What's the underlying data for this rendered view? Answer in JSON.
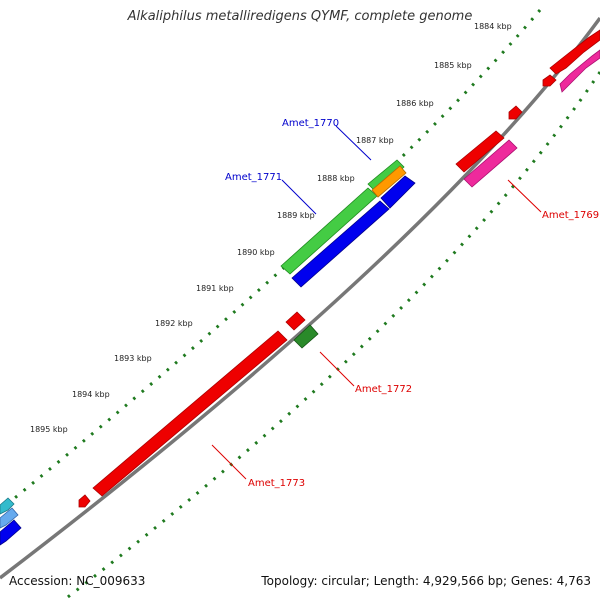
{
  "title": "Alkaliphilus metalliredigens QYMF, complete genome",
  "footer": {
    "accession": "Accession: NC_009633",
    "summary": "Topology: circular; Length: 4,929,566 bp; Genes: 4,763"
  },
  "ticks": [
    "1884 kbp",
    "1885 kbp",
    "1886 kbp",
    "1887 kbp",
    "1888 kbp",
    "1889 kbp",
    "1890 kbp",
    "1891 kbp",
    "1892 kbp",
    "1893 kbp",
    "1894 kbp",
    "1895 kbp"
  ],
  "genes": [
    {
      "name": "Amet_1769",
      "color": "#dd0000"
    },
    {
      "name": "Amet_1770",
      "color": "#0000cc"
    },
    {
      "name": "Amet_1771",
      "color": "#0000cc"
    },
    {
      "name": "Amet_1772",
      "color": "#dd0000"
    },
    {
      "name": "Amet_1773",
      "color": "#dd0000"
    }
  ],
  "colors": {
    "backbone": "#777777",
    "dots": "#1f7a1f",
    "red": "#ee0000",
    "magenta": "#ee2a9c",
    "green": "#44cc44",
    "dark_green": "#2a8a2a",
    "blue": "#0000ee",
    "orange": "#ff9900",
    "cyan": "#33bbcc"
  }
}
